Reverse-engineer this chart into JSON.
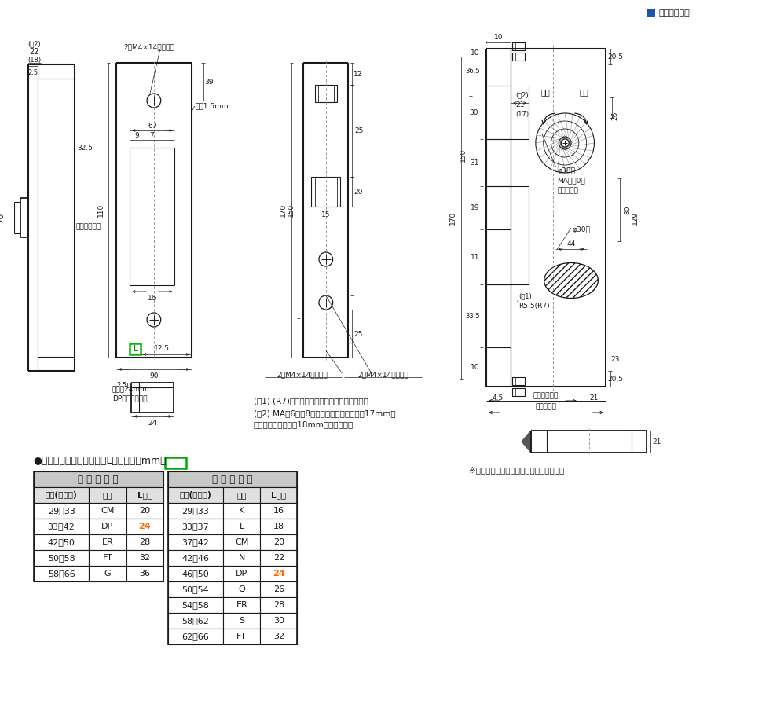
{
  "bg_color": "#ffffff",
  "line_color": "#1a1a1a",
  "header_square_color": "#2255aa",
  "header_text": "左右勝手共通",
  "table_title_prefix": "●扉厚によるストライクの",
  "table_title_L": "L寸法",
  "table_title_suffix": "（単位mm）",
  "single_door_header": "片 開 き 扉 用",
  "double_door_header": "両 開 き 扉 用",
  "col_headers": [
    "扉厚(以～未)",
    "記号",
    "L寸法"
  ],
  "single_rows": [
    [
      "29～33",
      "CM",
      "20"
    ],
    [
      "33～42",
      "DP",
      "24"
    ],
    [
      "42～50",
      "ER",
      "28"
    ],
    [
      "50～58",
      "FT",
      "32"
    ],
    [
      "58～66",
      "G",
      "36"
    ]
  ],
  "double_rows": [
    [
      "29～33",
      "K",
      "16"
    ],
    [
      "33～37",
      "L",
      "18"
    ],
    [
      "37～42",
      "CM",
      "20"
    ],
    [
      "42～46",
      "N",
      "22"
    ],
    [
      "46～50",
      "DP",
      "24"
    ],
    [
      "50～54",
      "Q",
      "26"
    ],
    [
      "54～58",
      "ER",
      "28"
    ],
    [
      "58～62",
      "S",
      "30"
    ],
    [
      "62～66",
      "FT",
      "32"
    ]
  ],
  "note1": "(注1) (R7)はケースハンドル付の場合を示す。",
  "note2": "(注2) MA－6、－8型はデッドボルト出寸法17mm、",
  "note3": "　　　トロヨケ深さ18mmとなります。",
  "note4": "※鍵の回転方向は、右勝手の場合を示す。",
  "table_header_color": "#c8c8c8",
  "table_subheader_color": "#e0e0e0",
  "dp_highlight": "#ff6600",
  "green_box_color": "#00aa00"
}
